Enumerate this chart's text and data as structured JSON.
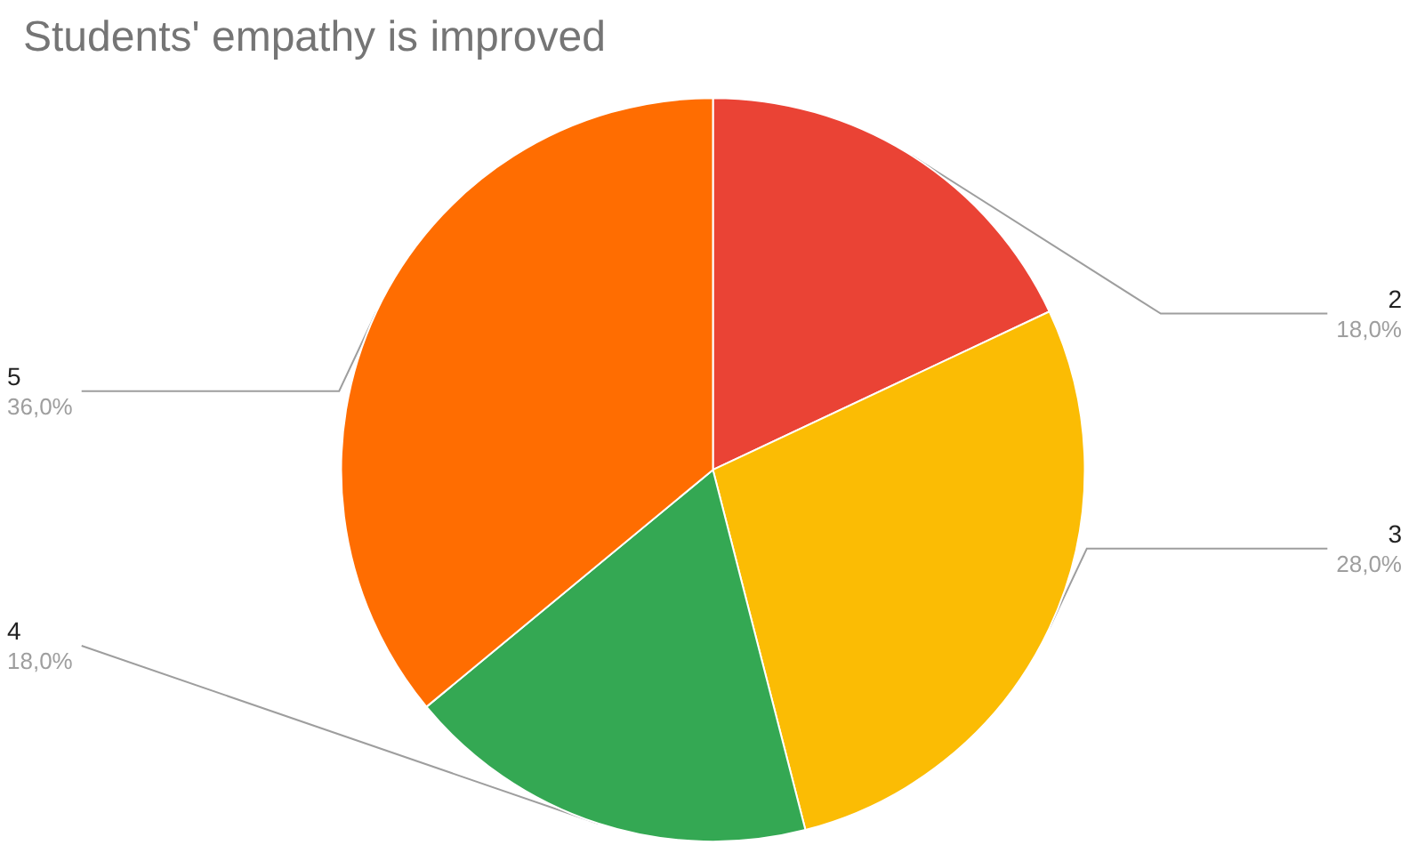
{
  "chart_data": {
    "type": "pie",
    "title": "Students' empathy is improved",
    "categories": [
      "2",
      "3",
      "4",
      "5"
    ],
    "values": [
      18,
      28,
      18,
      36
    ],
    "value_labels": [
      "18,0%",
      "28,0%",
      "18,0%",
      "36,0%"
    ],
    "colors": [
      "#ea4335",
      "#fbbc04",
      "#34a853",
      "#ff6d01"
    ],
    "legend": false
  }
}
